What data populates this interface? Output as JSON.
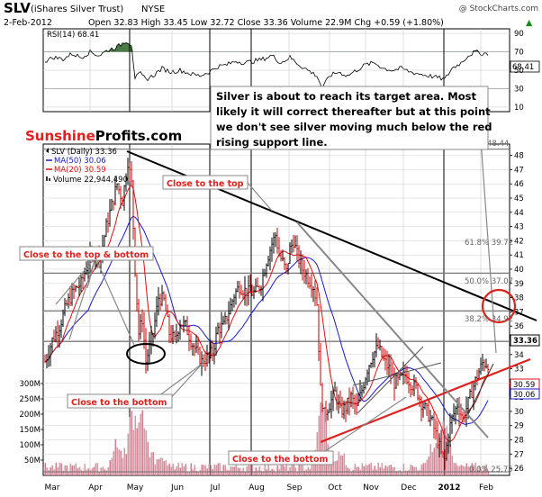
{
  "header": {
    "symbol": "SLV",
    "name": "(iShares Silver Trust)",
    "exchange": "NYSE",
    "copyright": "@ StockCharts.com",
    "date": "2-Feb-2012",
    "ohlc": "Open 32.83   High 33.45   Low 32.72   Close 33.36   Volume 22.9M   Chg +0.59 (+1.80%)",
    "chg_arrow": "▲"
  },
  "rsi": {
    "label": "RSI(14) 68.41",
    "last_label": "68.41",
    "ticks": [
      "90",
      "70",
      "50",
      "30",
      "10"
    ],
    "tick_values": [
      90,
      70,
      50,
      30,
      10
    ]
  },
  "legend": {
    "slv": "SLV (Daily) 33.36",
    "ma50": "MA(50) 30.06",
    "ma20": "MA(20) 30.59",
    "volume": "Volume 22,944,490"
  },
  "brand": {
    "part1": "Sunshine",
    "part2": "Profits.com"
  },
  "note": {
    "lines": [
      "Silver is about to reach its target area. Most",
      "likely it will correct thereafter but at this point",
      "we don't see silver moving much below the red",
      "rising support line."
    ]
  },
  "callouts": {
    "top": "Close to the top",
    "top_bottom": "Close to the top & bottom",
    "bottom_1": "Close to the bottom",
    "bottom_2": "Close to the bottom"
  },
  "fib_labels": {
    "f0": "0.0% 25.75",
    "f38": "38.2% 34.92",
    "f50": "50.0% 37.07",
    "f618": "61.8% 39.72",
    "f100": "48.44"
  },
  "price_labels": {
    "last": "33.36",
    "ma20": "30.59",
    "ma50": "30.06"
  },
  "price_axis": {
    "ticks": [
      "48",
      "47",
      "46",
      "45",
      "44",
      "43",
      "42",
      "41",
      "40",
      "39",
      "38",
      "37",
      "36",
      "35",
      "34",
      "33",
      "32",
      "31",
      "30",
      "29",
      "28",
      "27",
      "26"
    ],
    "tick_values": [
      48,
      47,
      46,
      45,
      44,
      43,
      42,
      41,
      40,
      39,
      38,
      37,
      36,
      35,
      34,
      33,
      32,
      31,
      30,
      29,
      28,
      27,
      26
    ]
  },
  "volume_axis": {
    "ticks": [
      "300M",
      "250M",
      "200M",
      "150M",
      "100M",
      "50M"
    ],
    "tick_values": [
      300,
      250,
      200,
      150,
      100,
      50
    ]
  },
  "months": [
    "Mar",
    "Apr",
    "May",
    "Jun",
    "Jul",
    "Aug",
    "Sep",
    "Oct",
    "Nov",
    "Dec",
    "2012",
    "Feb"
  ],
  "colors": {
    "price_up": "#000000",
    "price_down": "#cc0000",
    "ma50": "#1a1acc",
    "ma20": "#dd1111",
    "resistance": "#000000",
    "support": "#e0201d",
    "gray_line": "#888888",
    "rsi_fill": "#4a7a45",
    "volume_bar": "#c9a0a6",
    "volume_bar_dark": "#d58090",
    "brand_red": "#e0201d"
  },
  "chart_data": {
    "type": "line",
    "title": "SLV (iShares Silver Trust) NYSE",
    "price_series": {
      "name": "SLV (Daily)",
      "x": [
        "Mar",
        "Apr-mid",
        "Apr-end",
        "May-early",
        "May-mid",
        "Jun",
        "Jun-end",
        "Jul-mid",
        "Aug-early",
        "Aug-mid",
        "Aug-end",
        "Sep-mid",
        "Sep-end",
        "Oct",
        "Nov-early",
        "Nov-end",
        "Dec-mid",
        "Dec-end",
        "2012",
        "Feb-2"
      ],
      "close": [
        34.5,
        41.5,
        47.6,
        34.0,
        34.5,
        35.5,
        33.0,
        37.5,
        38.5,
        40.5,
        42.0,
        39.5,
        29.5,
        31.0,
        33.5,
        31.8,
        30.5,
        26.5,
        30.5,
        33.36
      ]
    },
    "ma50": {
      "name": "MA(50)",
      "last": 30.06
    },
    "ma20": {
      "name": "MA(20)",
      "last": 30.59
    },
    "fibonacci": [
      {
        "level": "0.0%",
        "value": 25.75
      },
      {
        "level": "38.2%",
        "value": 34.92
      },
      {
        "level": "50.0%",
        "value": 37.07
      },
      {
        "level": "61.8%",
        "value": 39.72
      },
      {
        "level": "100%",
        "value": 48.44
      }
    ],
    "rsi14_last": 68.41,
    "volume_last": 22944490,
    "ylim": [
      25.5,
      48.8
    ],
    "volume_ylim": [
      0,
      320
    ],
    "rsi_ylim": [
      5,
      95
    ],
    "legend_placement": "top-left",
    "grid": true
  }
}
